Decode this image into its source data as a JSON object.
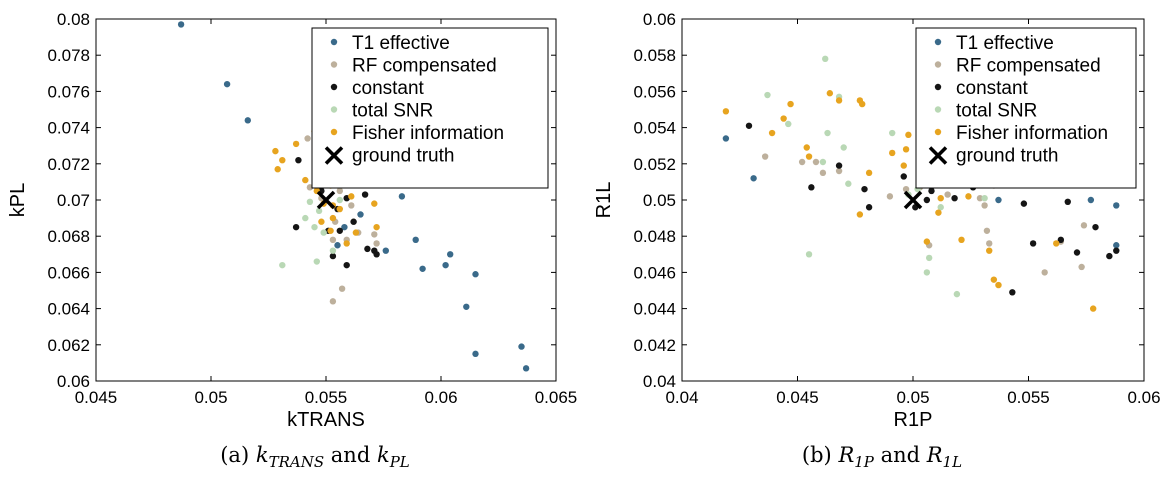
{
  "legend_labels": [
    "T1 effective",
    "RF compensated",
    "constant",
    "total SNR",
    "Fisher information",
    "ground truth"
  ],
  "colors": {
    "t1": "#3a6a8a",
    "rf": "#bdb09c",
    "const": "#151515",
    "snr": "#b9d8b5",
    "fisher": "#e7a41f",
    "truth": "#000000"
  },
  "captions": {
    "a": {
      "prefix": "(a) ",
      "v1": "k",
      "v1sub": "TRANS",
      "mid": " and ",
      "v2": "k",
      "v2sub": "PL"
    },
    "b": {
      "prefix": "(b) ",
      "v1": "R",
      "v1sub": "1P",
      "mid": " and ",
      "v2": "R",
      "v2sub": "1L"
    }
  },
  "chart_data": [
    {
      "type": "scatter",
      "xlabel": "kTRANS",
      "ylabel": "kPL",
      "xlim": [
        0.045,
        0.065
      ],
      "ylim": [
        0.06,
        0.08
      ],
      "xticks": [
        "0.045",
        "0.05",
        "0.055",
        "0.06",
        "0.065"
      ],
      "yticks": [
        "0.06",
        "0.062",
        "0.064",
        "0.066",
        "0.068",
        "0.07",
        "0.072",
        "0.074",
        "0.076",
        "0.078",
        "0.08"
      ],
      "legend_position": "top-right",
      "series": [
        {
          "name": "T1 effective",
          "points": [
            [
              0.0487,
              0.0797
            ],
            [
              0.0507,
              0.0764
            ],
            [
              0.0516,
              0.0744
            ],
            [
              0.0583,
              0.0702
            ],
            [
              0.0589,
              0.0678
            ],
            [
              0.0592,
              0.0662
            ],
            [
              0.0602,
              0.0664
            ],
            [
              0.0604,
              0.067
            ],
            [
              0.0611,
              0.0641
            ],
            [
              0.0615,
              0.0659
            ],
            [
              0.0615,
              0.0615
            ],
            [
              0.0635,
              0.0619
            ],
            [
              0.0637,
              0.0607
            ],
            [
              0.0576,
              0.0672
            ],
            [
              0.0565,
              0.0692
            ],
            [
              0.0558,
              0.0685
            ],
            [
              0.0555,
              0.0675
            ]
          ]
        },
        {
          "name": "RF compensated",
          "points": [
            [
              0.0542,
              0.0734
            ],
            [
              0.0547,
              0.0728
            ],
            [
              0.0552,
              0.0722
            ],
            [
              0.0557,
              0.0718
            ],
            [
              0.0549,
              0.0712
            ],
            [
              0.0556,
              0.0705
            ],
            [
              0.0543,
              0.0707
            ],
            [
              0.0561,
              0.0697
            ],
            [
              0.0554,
              0.0688
            ],
            [
              0.0562,
              0.0688
            ],
            [
              0.0553,
              0.0678
            ],
            [
              0.0559,
              0.0678
            ],
            [
              0.0564,
              0.0682
            ],
            [
              0.0571,
              0.0681
            ],
            [
              0.0557,
              0.0651
            ],
            [
              0.0553,
              0.0644
            ],
            [
              0.0572,
              0.0676
            ],
            [
              0.0548,
              0.0701
            ],
            [
              0.0546,
              0.0732
            ]
          ]
        },
        {
          "name": "constant",
          "points": [
            [
              0.0538,
              0.0722
            ],
            [
              0.0546,
              0.0716
            ],
            [
              0.0552,
              0.0717
            ],
            [
              0.0557,
              0.0714
            ],
            [
              0.0562,
              0.0712
            ],
            [
              0.0566,
              0.0716
            ],
            [
              0.0548,
              0.0705
            ],
            [
              0.0556,
              0.0709
            ],
            [
              0.0559,
              0.0701
            ],
            [
              0.0567,
              0.0703
            ],
            [
              0.0555,
              0.0695
            ],
            [
              0.0562,
              0.0688
            ],
            [
              0.0537,
              0.0685
            ],
            [
              0.0551,
              0.0683
            ],
            [
              0.0556,
              0.0683
            ],
            [
              0.0553,
              0.0669
            ],
            [
              0.0559,
              0.0664
            ],
            [
              0.0568,
              0.0673
            ],
            [
              0.0571,
              0.0672
            ],
            [
              0.0572,
              0.067
            ]
          ]
        },
        {
          "name": "total SNR",
          "points": [
            [
              0.0531,
              0.0664
            ],
            [
              0.0546,
              0.0666
            ],
            [
              0.0541,
              0.069
            ],
            [
              0.0547,
              0.0694
            ],
            [
              0.0545,
              0.0685
            ],
            [
              0.0549,
              0.0682
            ],
            [
              0.0553,
              0.0672
            ],
            [
              0.0549,
              0.0736
            ],
            [
              0.0552,
              0.0719
            ],
            [
              0.0557,
              0.0719
            ],
            [
              0.0556,
              0.07
            ],
            [
              0.0543,
              0.0699
            ],
            [
              0.0566,
              0.0722
            ]
          ]
        },
        {
          "name": "Fisher information",
          "points": [
            [
              0.0528,
              0.0727
            ],
            [
              0.0531,
              0.0722
            ],
            [
              0.0529,
              0.0717
            ],
            [
              0.0537,
              0.0731
            ],
            [
              0.0545,
              0.0738
            ],
            [
              0.0546,
              0.0727
            ],
            [
              0.0551,
              0.0733
            ],
            [
              0.0541,
              0.0711
            ],
            [
              0.0547,
              0.0712
            ],
            [
              0.0552,
              0.0708
            ],
            [
              0.0546,
              0.0705
            ],
            [
              0.0549,
              0.0698
            ],
            [
              0.0553,
              0.0697
            ],
            [
              0.0556,
              0.0695
            ],
            [
              0.0548,
              0.0688
            ],
            [
              0.0553,
              0.069
            ],
            [
              0.0561,
              0.0702
            ],
            [
              0.0571,
              0.0698
            ],
            [
              0.0572,
              0.0685
            ],
            [
              0.0552,
              0.0683
            ],
            [
              0.0559,
              0.0676
            ],
            [
              0.0563,
              0.0682
            ]
          ]
        },
        {
          "name": "ground truth",
          "points": [
            [
              0.055,
              0.07
            ]
          ]
        }
      ]
    },
    {
      "type": "scatter",
      "xlabel": "R1P",
      "ylabel": "R1L",
      "xlim": [
        0.04,
        0.06
      ],
      "ylim": [
        0.04,
        0.06
      ],
      "xticks": [
        "0.04",
        "0.045",
        "0.05",
        "0.055",
        "0.06"
      ],
      "yticks": [
        "0.04",
        "0.042",
        "0.044",
        "0.046",
        "0.048",
        "0.05",
        "0.052",
        "0.054",
        "0.056",
        "0.058",
        "0.06"
      ],
      "legend_position": "top-right",
      "series": [
        {
          "name": "T1 effective",
          "points": [
            [
              0.0419,
              0.0534
            ],
            [
              0.0431,
              0.0512
            ],
            [
              0.0507,
              0.0518
            ],
            [
              0.0537,
              0.05
            ],
            [
              0.0553,
              0.0511
            ],
            [
              0.0577,
              0.05
            ],
            [
              0.0588,
              0.0497
            ],
            [
              0.0588,
              0.0475
            ]
          ]
        },
        {
          "name": "RF compensated",
          "points": [
            [
              0.0436,
              0.0524
            ],
            [
              0.0452,
              0.0521
            ],
            [
              0.0458,
              0.0521
            ],
            [
              0.0461,
              0.0515
            ],
            [
              0.0468,
              0.0516
            ],
            [
              0.049,
              0.0502
            ],
            [
              0.0497,
              0.0506
            ],
            [
              0.0503,
              0.0507
            ],
            [
              0.0507,
              0.0475
            ],
            [
              0.0515,
              0.0503
            ],
            [
              0.0529,
              0.0501
            ],
            [
              0.0531,
              0.0497
            ],
            [
              0.0533,
              0.0512
            ],
            [
              0.0535,
              0.0508
            ],
            [
              0.0532,
              0.0483
            ],
            [
              0.0533,
              0.0476
            ],
            [
              0.0557,
              0.046
            ],
            [
              0.0573,
              0.0463
            ],
            [
              0.0574,
              0.0486
            ],
            [
              0.0564,
              0.0477
            ]
          ]
        },
        {
          "name": "constant",
          "points": [
            [
              0.0429,
              0.0541
            ],
            [
              0.0456,
              0.0507
            ],
            [
              0.0468,
              0.0519
            ],
            [
              0.0479,
              0.0506
            ],
            [
              0.0481,
              0.0496
            ],
            [
              0.0496,
              0.0513
            ],
            [
              0.0501,
              0.0496
            ],
            [
              0.0506,
              0.05
            ],
            [
              0.0508,
              0.0505
            ],
            [
              0.0518,
              0.0501
            ],
            [
              0.0526,
              0.0507
            ],
            [
              0.0543,
              0.0449
            ],
            [
              0.0548,
              0.0511
            ],
            [
              0.0552,
              0.0476
            ],
            [
              0.0564,
              0.0478
            ],
            [
              0.0567,
              0.0499
            ],
            [
              0.0571,
              0.0471
            ],
            [
              0.0579,
              0.0485
            ],
            [
              0.0585,
              0.0469
            ],
            [
              0.0588,
              0.0472
            ],
            [
              0.0548,
              0.0498
            ]
          ]
        },
        {
          "name": "total SNR",
          "points": [
            [
              0.0437,
              0.0558
            ],
            [
              0.0446,
              0.0542
            ],
            [
              0.0455,
              0.047
            ],
            [
              0.0462,
              0.0578
            ],
            [
              0.0468,
              0.0557
            ],
            [
              0.0463,
              0.0537
            ],
            [
              0.047,
              0.0529
            ],
            [
              0.0472,
              0.0509
            ],
            [
              0.0461,
              0.0521
            ],
            [
              0.0491,
              0.0537
            ],
            [
              0.0498,
              0.0503
            ],
            [
              0.0502,
              0.0506
            ],
            [
              0.0506,
              0.046
            ],
            [
              0.0507,
              0.0468
            ],
            [
              0.0512,
              0.0496
            ],
            [
              0.0519,
              0.0448
            ],
            [
              0.0531,
              0.0501
            ]
          ]
        },
        {
          "name": "Fisher information",
          "points": [
            [
              0.0419,
              0.0549
            ],
            [
              0.0439,
              0.0537
            ],
            [
              0.0444,
              0.0545
            ],
            [
              0.0447,
              0.0553
            ],
            [
              0.0454,
              0.0529
            ],
            [
              0.0455,
              0.0524
            ],
            [
              0.0464,
              0.0559
            ],
            [
              0.0468,
              0.0555
            ],
            [
              0.0477,
              0.0555
            ],
            [
              0.0478,
              0.0553
            ],
            [
              0.0477,
              0.0492
            ],
            [
              0.0481,
              0.0515
            ],
            [
              0.0491,
              0.0526
            ],
            [
              0.0496,
              0.0519
            ],
            [
              0.0497,
              0.0528
            ],
            [
              0.0503,
              0.053
            ],
            [
              0.0508,
              0.0533
            ],
            [
              0.0511,
              0.0493
            ],
            [
              0.0512,
              0.0501
            ],
            [
              0.0518,
              0.0515
            ],
            [
              0.0524,
              0.0502
            ],
            [
              0.0521,
              0.0478
            ],
            [
              0.0533,
              0.0472
            ],
            [
              0.0535,
              0.0456
            ],
            [
              0.0537,
              0.0453
            ],
            [
              0.0562,
              0.0476
            ],
            [
              0.0578,
              0.044
            ],
            [
              0.0498,
              0.0536
            ],
            [
              0.0506,
              0.0477
            ]
          ]
        },
        {
          "name": "ground truth",
          "points": [
            [
              0.05,
              0.05
            ]
          ]
        }
      ]
    }
  ]
}
